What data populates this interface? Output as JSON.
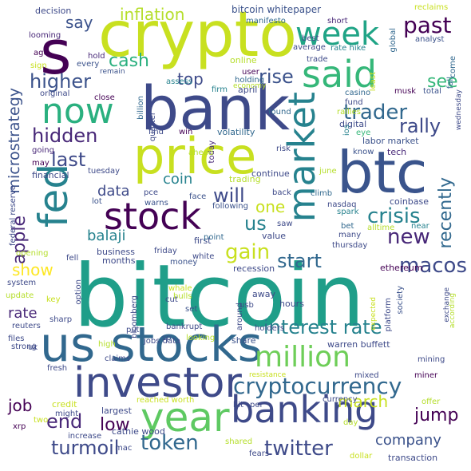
{
  "words": [
    {
      "text": "bitcoin",
      "color": "#1f9e89"
    },
    {
      "text": "crypto",
      "color": "#c8e020"
    },
    {
      "text": "bank",
      "color": "#3e4a89"
    },
    {
      "text": "price",
      "color": "#c8e020"
    },
    {
      "text": "btc",
      "color": "#3a548c"
    },
    {
      "text": "us stocks",
      "color": "#31688e"
    },
    {
      "text": "investor",
      "color": "#3e4a89"
    },
    {
      "text": "market",
      "color": "#26828e"
    },
    {
      "text": "stock",
      "color": "#440154"
    },
    {
      "text": "fed",
      "color": "#26828e"
    },
    {
      "text": "banking",
      "color": "#3e4a89"
    },
    {
      "text": "year",
      "color": "#5ec962"
    },
    {
      "text": "week",
      "color": "#20a486"
    },
    {
      "text": "said",
      "color": "#35b779"
    },
    {
      "text": "s",
      "color": "#440154"
    },
    {
      "text": "now",
      "color": "#2ab07f"
    },
    {
      "text": "million",
      "color": "#6ece58"
    },
    {
      "text": "cryptocurrency",
      "color": "#31688e"
    },
    {
      "text": "past",
      "color": "#440154"
    },
    {
      "text": "inflation",
      "color": "#b5de2b"
    },
    {
      "text": "higher",
      "color": "#3b528b"
    },
    {
      "text": "trader",
      "color": "#31688e"
    },
    {
      "text": "rise",
      "color": "#3b528b"
    },
    {
      "text": "top",
      "color": "#3e4a89"
    },
    {
      "text": "rally",
      "color": "#3e4a89"
    },
    {
      "text": "hidden",
      "color": "#482878"
    },
    {
      "text": "last",
      "color": "#3e4a89"
    },
    {
      "text": "will",
      "color": "#3e4a89"
    },
    {
      "text": "apple",
      "color": "#482878"
    },
    {
      "text": "crisis",
      "color": "#26828e"
    },
    {
      "text": "new",
      "color": "#482878"
    },
    {
      "text": "microstrategy",
      "color": "#3b528b"
    },
    {
      "text": "gain",
      "color": "#c8e020"
    },
    {
      "text": "recently",
      "color": "#31688e"
    },
    {
      "text": "macos",
      "color": "#3e4a89"
    },
    {
      "text": "start",
      "color": "#31688e"
    },
    {
      "text": "show",
      "color": "#fde725"
    },
    {
      "text": "interest rate",
      "color": "#26828e"
    },
    {
      "text": "jump",
      "color": "#440154"
    },
    {
      "text": "token",
      "color": "#31688e"
    },
    {
      "text": "twitter",
      "color": "#3e4a89"
    },
    {
      "text": "turmoil",
      "color": "#3e4a89"
    },
    {
      "text": "end",
      "color": "#482878"
    },
    {
      "text": "job",
      "color": "#440154"
    },
    {
      "text": "low",
      "color": "#440154"
    },
    {
      "text": "company",
      "color": "#3b528b"
    },
    {
      "text": "march",
      "color": "#c8e020"
    },
    {
      "text": "us",
      "color": "#26828e"
    },
    {
      "text": "one",
      "color": "#c8e020"
    },
    {
      "text": "coin",
      "color": "#26828e"
    },
    {
      "text": "balaji",
      "color": "#26828e"
    },
    {
      "text": "rate",
      "color": "#482878"
    },
    {
      "text": "data",
      "color": "#3e4a89"
    },
    {
      "text": "say",
      "color": "#3b528b"
    },
    {
      "text": "cash",
      "color": "#2ab07f"
    },
    {
      "text": "see",
      "color": "#35b779"
    }
  ],
  "small_words": [
    "decision",
    "bitcoin whitepaper",
    "reclaims",
    "short",
    "manifesto",
    "looming",
    "best",
    "global",
    "ago",
    "every",
    "hold",
    "average",
    "rate hike",
    "analyst",
    "remain",
    "online",
    "trade",
    "sign",
    "least",
    "user",
    "firm",
    "holding",
    "economy",
    "april",
    "assess",
    "fall",
    "come",
    "total",
    "original",
    "close",
    "billion",
    "casino",
    "fund",
    "musk",
    "rallies",
    "found",
    "wednesday",
    "quarter",
    "eye",
    "digital",
    "ios",
    "labor market",
    "going",
    "may",
    "financial",
    "tuesday",
    "today",
    "ahead",
    "risk",
    "know",
    "tech",
    "find",
    "win",
    "volatility",
    "pce",
    "trading",
    "continue",
    "june",
    "face",
    "warns",
    "back",
    "climb",
    "nasdaq",
    "coinbase",
    "lot",
    "following",
    "saw",
    "spark",
    "bet",
    "alltime",
    "near",
    "federal reserve",
    "opening",
    "fell",
    "friday",
    "business",
    "first",
    "point",
    "value",
    "many",
    "thursday",
    "system",
    "months",
    "money",
    "white",
    "recession",
    "ethereum",
    "update",
    "option",
    "whale",
    "bulls",
    "cut",
    "society",
    "exchange",
    "according",
    "reuters",
    "key",
    "sharp",
    "bloomberg",
    "set",
    "away",
    "hours",
    "usb",
    "expected",
    "platform",
    "files",
    "uk",
    "put",
    "around",
    "holders",
    "warren buffett",
    "high",
    "sp",
    "bankrupt",
    "jobs data",
    "looking",
    "share",
    "fresh",
    "strong",
    "claims",
    "mining",
    "resistance",
    "mixed",
    "miner",
    "credit",
    "reached worth",
    "currency",
    "offer",
    "might",
    "largest",
    "hit",
    "per",
    "two",
    "xrp",
    "increase",
    "cathie wood",
    "mac",
    "fears",
    "shared",
    "day",
    "dollar",
    "transaction"
  ]
}
